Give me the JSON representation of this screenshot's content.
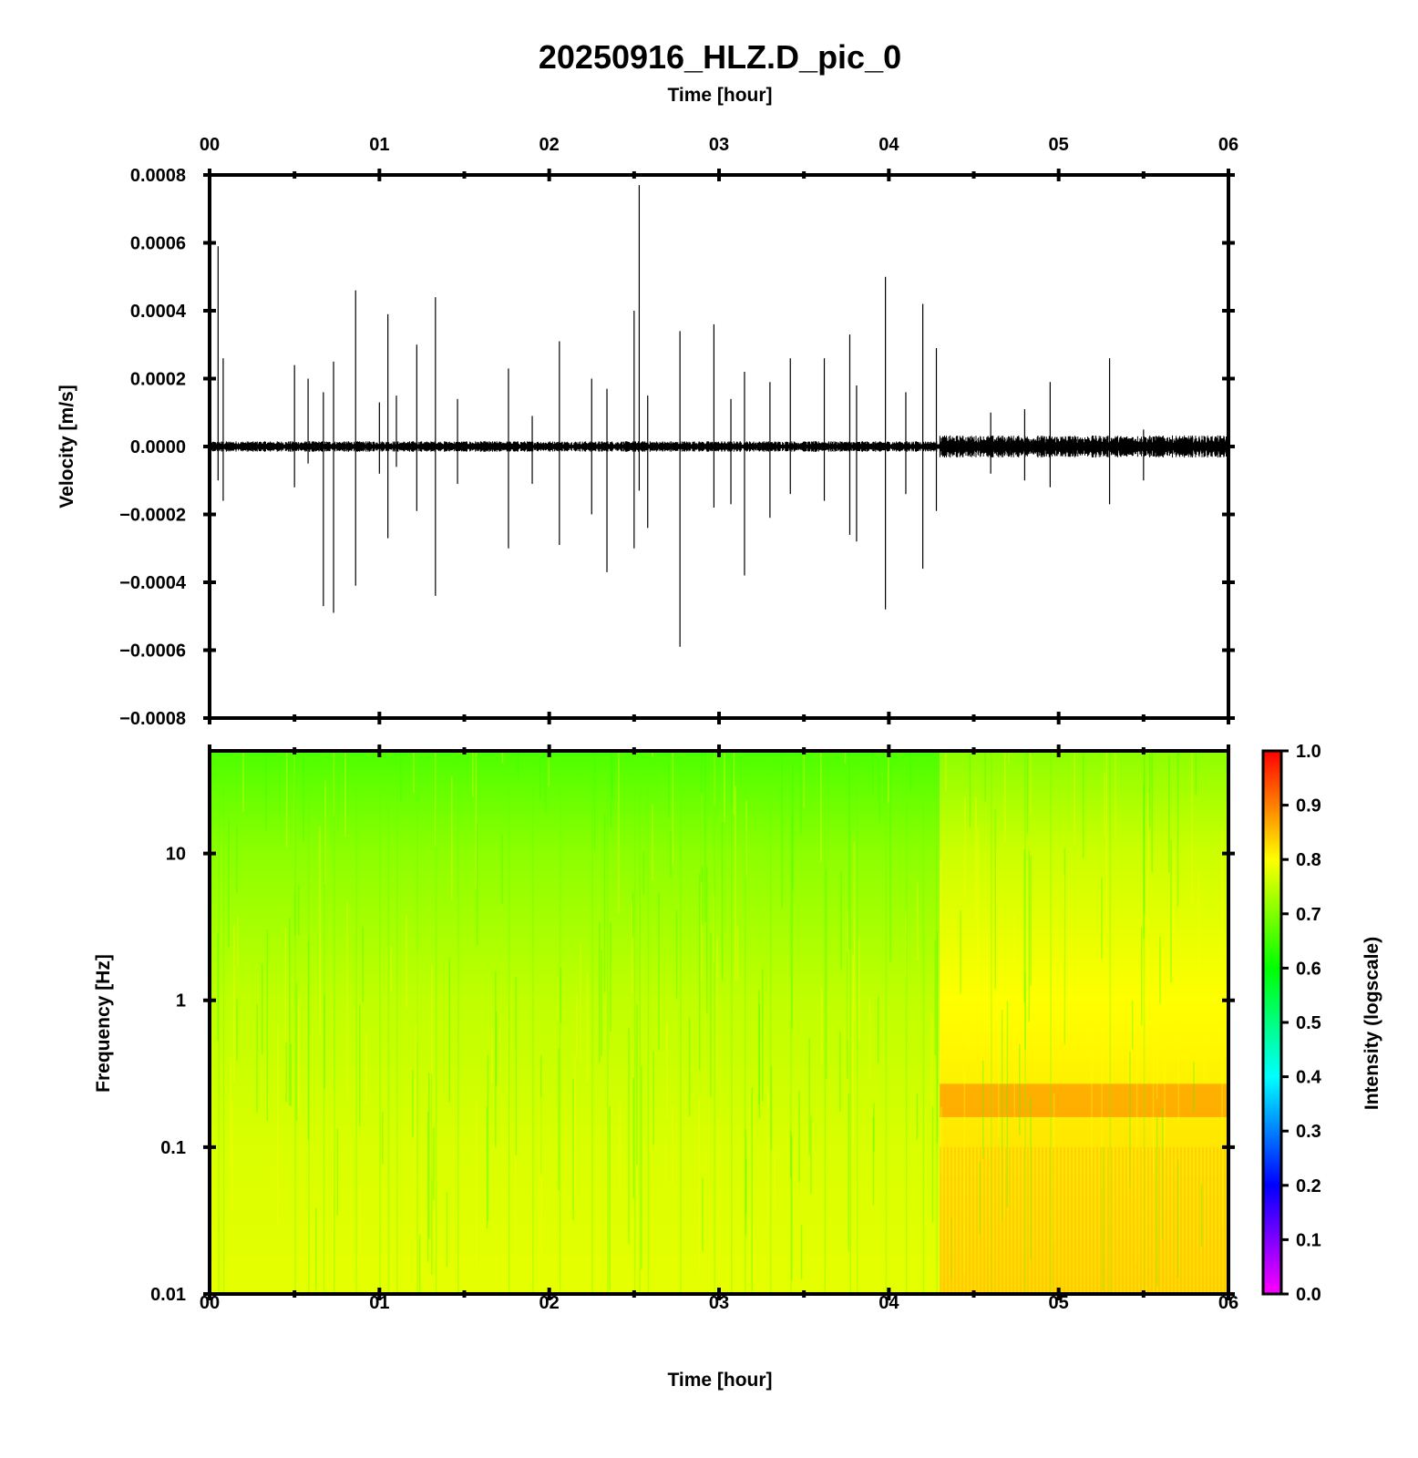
{
  "title": "20250916_HLZ.D_pic_0",
  "top_xlabel": "Time [hour]",
  "bottom_xlabel": "Time [hour]",
  "colors": {
    "axis": "#000000",
    "trace": "#000000",
    "colormap": [
      "#ff00ff",
      "#8000ff",
      "#0000ff",
      "#0080ff",
      "#00ffff",
      "#00ff80",
      "#00ff00",
      "#80ff00",
      "#ffff00",
      "#ff8000",
      "#ff0000"
    ]
  },
  "chart_data": [
    {
      "type": "line",
      "xlabel": "Time [hour]",
      "ylabel": "Velocity [m/s]",
      "xlim": [
        0,
        6
      ],
      "ylim": [
        -0.0008,
        0.0008
      ],
      "xticks": [
        0,
        1,
        2,
        3,
        4,
        5,
        6
      ],
      "xtick_labels": [
        "00",
        "01",
        "02",
        "03",
        "04",
        "05",
        "06"
      ],
      "yticks": [
        0.0008,
        0.0006,
        0.0004,
        0.0002,
        0.0,
        -0.0002,
        -0.0004,
        -0.0006,
        -0.0008
      ],
      "ytick_labels": [
        "0.0008",
        "0.0006",
        "0.0004",
        "0.0002",
        "0.0000",
        "−0.0002",
        "−0.0004",
        "−0.0006",
        "−0.0008"
      ],
      "noise_level_before_4_3h": 1.2e-05,
      "noise_level_after_4_3h": 2.5e-05,
      "spikes": [
        {
          "t": 0.05,
          "up": 0.00059,
          "down": -0.0001
        },
        {
          "t": 0.08,
          "up": 0.00026,
          "down": -0.00016
        },
        {
          "t": 0.5,
          "up": 0.00024,
          "down": -0.00012
        },
        {
          "t": 0.58,
          "up": 0.0002,
          "down": -5e-05
        },
        {
          "t": 0.67,
          "up": 0.00016,
          "down": -0.00047
        },
        {
          "t": 0.73,
          "up": 0.00025,
          "down": -0.00049
        },
        {
          "t": 0.86,
          "up": 0.00046,
          "down": -0.00041
        },
        {
          "t": 1.0,
          "up": 0.00013,
          "down": -8e-05
        },
        {
          "t": 1.05,
          "up": 0.00039,
          "down": -0.00027
        },
        {
          "t": 1.1,
          "up": 0.00015,
          "down": -6e-05
        },
        {
          "t": 1.22,
          "up": 0.0003,
          "down": -0.00019
        },
        {
          "t": 1.33,
          "up": 0.00044,
          "down": -0.00044
        },
        {
          "t": 1.46,
          "up": 0.00014,
          "down": -0.00011
        },
        {
          "t": 1.76,
          "up": 0.00023,
          "down": -0.0003
        },
        {
          "t": 1.9,
          "up": 9e-05,
          "down": -0.00011
        },
        {
          "t": 2.06,
          "up": 0.00031,
          "down": -0.00029
        },
        {
          "t": 2.25,
          "up": 0.0002,
          "down": -0.0002
        },
        {
          "t": 2.34,
          "up": 0.00017,
          "down": -0.00037
        },
        {
          "t": 2.5,
          "up": 0.0004,
          "down": -0.0003
        },
        {
          "t": 2.53,
          "up": 0.00077,
          "down": -0.00013
        },
        {
          "t": 2.58,
          "up": 0.00015,
          "down": -0.00024
        },
        {
          "t": 2.77,
          "up": 0.00034,
          "down": -0.00059
        },
        {
          "t": 2.97,
          "up": 0.00036,
          "down": -0.00018
        },
        {
          "t": 3.07,
          "up": 0.00014,
          "down": -0.00017
        },
        {
          "t": 3.15,
          "up": 0.00022,
          "down": -0.00038
        },
        {
          "t": 3.3,
          "up": 0.00019,
          "down": -0.00021
        },
        {
          "t": 3.42,
          "up": 0.00026,
          "down": -0.00014
        },
        {
          "t": 3.62,
          "up": 0.00026,
          "down": -0.00016
        },
        {
          "t": 3.77,
          "up": 0.00033,
          "down": -0.00026
        },
        {
          "t": 3.81,
          "up": 0.00018,
          "down": -0.00028
        },
        {
          "t": 3.98,
          "up": 0.0005,
          "down": -0.00048
        },
        {
          "t": 4.1,
          "up": 0.00016,
          "down": -0.00014
        },
        {
          "t": 4.2,
          "up": 0.00042,
          "down": -0.00036
        },
        {
          "t": 4.28,
          "up": 0.00029,
          "down": -0.00019
        },
        {
          "t": 4.6,
          "up": 0.0001,
          "down": -8e-05
        },
        {
          "t": 4.8,
          "up": 0.00011,
          "down": -0.0001
        },
        {
          "t": 4.95,
          "up": 0.00019,
          "down": -0.00012
        },
        {
          "t": 5.3,
          "up": 0.00026,
          "down": -0.00017
        },
        {
          "t": 5.5,
          "up": 5e-05,
          "down": -0.0001
        }
      ]
    },
    {
      "type": "heatmap",
      "xlabel": "Time [hour]",
      "ylabel": "Frequency [Hz]",
      "xlim": [
        0,
        6
      ],
      "ylim": [
        0.01,
        50
      ],
      "yscale": "log",
      "xticks": [
        0,
        1,
        2,
        3,
        4,
        5,
        6
      ],
      "xtick_labels": [
        "00",
        "01",
        "02",
        "03",
        "04",
        "05",
        "06"
      ],
      "yticks": [
        10,
        1,
        0.1,
        0.01
      ],
      "ytick_labels": [
        "10",
        "1",
        "0.1",
        "0.01"
      ],
      "intensity_profile": [
        {
          "freq": 50,
          "intensity": 0.66
        },
        {
          "freq": 10,
          "intensity": 0.71
        },
        {
          "freq": 1,
          "intensity": 0.75
        },
        {
          "freq": 0.1,
          "intensity": 0.77
        },
        {
          "freq": 0.01,
          "intensity": 0.78
        }
      ],
      "late_segment_start_hour": 4.3,
      "late_segment_extra_intensity": 0.05,
      "late_band_0_2Hz_intensity": 0.88,
      "colorbar": {
        "label": "Intensity (logscale)",
        "range": [
          0.0,
          1.0
        ],
        "ticks": [
          "1.0",
          "0.9",
          "0.8",
          "0.7",
          "0.6",
          "0.5",
          "0.4",
          "0.3",
          "0.2",
          "0.1",
          "0.0"
        ]
      }
    }
  ]
}
